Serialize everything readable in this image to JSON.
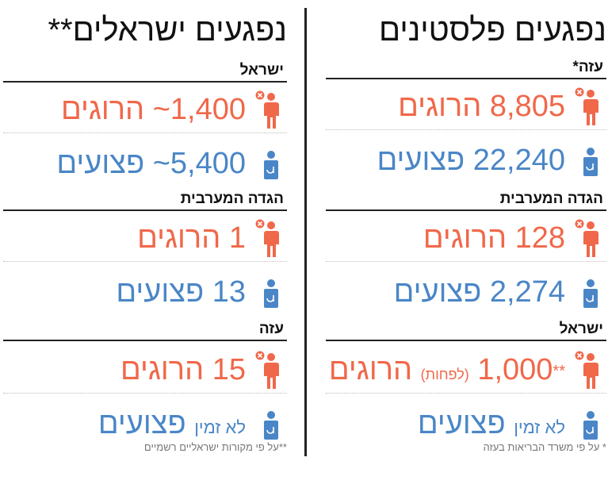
{
  "colors": {
    "killed": "#f0684a",
    "injured": "#4a86c7",
    "text": "#111111"
  },
  "right": {
    "title": "נפגעים פלסטינים",
    "gaza": {
      "label": "עזה",
      "mark": "*",
      "killed": "8,805 הרוגים",
      "injured": "22,240 פצועים"
    },
    "west_bank": {
      "label": "הגדה המערבית",
      "killed": "128 הרוגים",
      "injured": "2,274 פצועים"
    },
    "israel": {
      "label": "ישראל",
      "killed_num": "1,000",
      "killed_mark": "**",
      "killed_note": "(לפחות)",
      "killed_word": "הרוגים",
      "injured": "פצועים",
      "injured_note": "לא זמין"
    },
    "footnote": "* על פי משרד הבריאות בעזה"
  },
  "left": {
    "title": "נפגעים ישראלים**",
    "israel": {
      "label": "ישראל",
      "killed": "1,400~ הרוגים",
      "injured": "5,400~ פצועים"
    },
    "west_bank": {
      "label": "הגדה המערבית",
      "killed": "1 הרוגים",
      "injured": "13 פצועים"
    },
    "gaza": {
      "label": "עזה",
      "killed": "15 הרוגים",
      "injured": "פצועים",
      "injured_note": "לא זמין"
    },
    "footnote": "**על פי מקורות ישראליים רשמיים"
  },
  "icons": {
    "killed": "person-killed-icon",
    "injured": "person-injured-icon"
  }
}
